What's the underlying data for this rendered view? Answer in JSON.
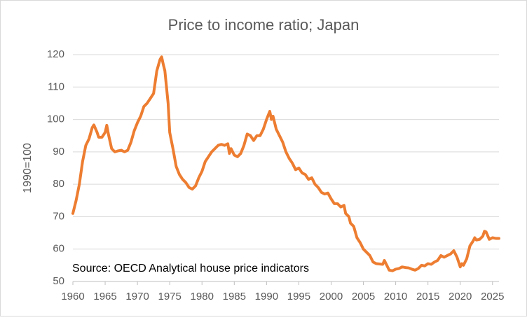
{
  "chart_data": {
    "type": "line",
    "title": "Price to income ratio; Japan",
    "y_label": "1990=100",
    "annotation": "Source: OECD Analytical house price indicators",
    "x": [
      1960,
      1960.5,
      1961,
      1961.5,
      1962,
      1962.5,
      1963,
      1963.25,
      1963.75,
      1964,
      1964.5,
      1965,
      1965.25,
      1965.5,
      1966,
      1966.5,
      1967,
      1967.5,
      1968,
      1968.5,
      1969,
      1969.5,
      1970,
      1970.5,
      1971,
      1971.5,
      1972,
      1972.5,
      1973,
      1973.5,
      1973.75,
      1974,
      1974.25,
      1974.75,
      1975,
      1975.5,
      1976,
      1976.5,
      1977,
      1977.5,
      1978,
      1978.5,
      1979,
      1979.5,
      1980,
      1980.5,
      1981,
      1981.5,
      1982,
      1982.5,
      1983,
      1983.5,
      1984,
      1984.25,
      1984.5,
      1985,
      1985.5,
      1986,
      1986.5,
      1987,
      1987.5,
      1988,
      1988.5,
      1989,
      1989.5,
      1990,
      1990.5,
      1990.75,
      1991,
      1991.5,
      1992,
      1992.5,
      1993,
      1993.5,
      1994,
      1994.5,
      1995,
      1995.5,
      1996,
      1996.5,
      1997,
      1997.5,
      1998,
      1998.5,
      1999,
      1999.5,
      2000,
      2000.5,
      2001,
      2001.5,
      2002,
      2002.25,
      2002.75,
      2003,
      2003.5,
      2004,
      2004.5,
      2005,
      2005.5,
      2006,
      2006.5,
      2007,
      2007.5,
      2008,
      2008.25,
      2008.5,
      2009,
      2009.5,
      2010,
      2010.5,
      2011,
      2011.5,
      2012,
      2012.5,
      2013,
      2013.5,
      2014,
      2014.5,
      2015,
      2015.5,
      2016,
      2016.5,
      2017,
      2017.5,
      2018,
      2018.5,
      2019,
      2019.5,
      2020,
      2020.25,
      2020.5,
      2021,
      2021.5,
      2022,
      2022.25,
      2022.5,
      2023,
      2023.5,
      2023.75,
      2024,
      2024.5,
      2025,
      2025.5,
      2026
    ],
    "series": [
      {
        "name": "Japan",
        "color": "#ed7d31",
        "values": [
          71,
          75,
          80,
          87,
          92,
          94,
          97.5,
          98.3,
          96,
          94.5,
          94.5,
          96,
          98.2,
          95.5,
          91,
          90,
          90.3,
          90.5,
          90,
          90.5,
          93,
          96.5,
          99,
          101,
          104,
          105,
          106.5,
          108,
          115,
          118.5,
          119.3,
          117,
          115,
          105,
          96,
          91,
          85.5,
          83,
          81.5,
          80.5,
          79,
          78.5,
          79.5,
          82,
          84,
          87,
          88.5,
          90,
          91,
          92,
          92.3,
          92,
          92.5,
          89.5,
          91,
          89,
          88.5,
          89.5,
          92,
          95.5,
          95,
          93.5,
          95,
          95,
          97,
          100,
          102.5,
          100,
          101,
          97,
          95,
          93,
          90,
          88,
          86.5,
          84.5,
          85,
          83.5,
          83,
          81.5,
          82,
          80,
          79,
          77.5,
          77,
          77.3,
          75.5,
          74,
          74,
          73,
          73.5,
          71,
          70,
          68,
          67,
          63.5,
          62,
          60,
          59,
          58,
          56,
          55.5,
          55.4,
          55.3,
          56.5,
          55.5,
          53.5,
          53.3,
          53.8,
          54,
          54.5,
          54.3,
          54.2,
          53.8,
          53.5,
          54,
          55,
          54.8,
          55.5,
          55.3,
          56,
          56.5,
          58,
          57.5,
          58,
          58.5,
          59.5,
          57.5,
          54.5,
          55.5,
          55,
          57,
          61,
          62.5,
          63.5,
          62.8,
          63,
          64,
          65.5,
          65.3,
          63,
          63.5,
          63.3,
          63.3
        ]
      }
    ],
    "xlim": [
      1960,
      2026
    ],
    "xticks": [
      1960,
      1965,
      1970,
      1975,
      1980,
      1985,
      1990,
      1995,
      2000,
      2005,
      2010,
      2015,
      2020,
      2025
    ],
    "ylim": [
      50,
      120
    ],
    "yticks": [
      50,
      60,
      70,
      80,
      90,
      100,
      110,
      120
    ],
    "grid": true
  }
}
